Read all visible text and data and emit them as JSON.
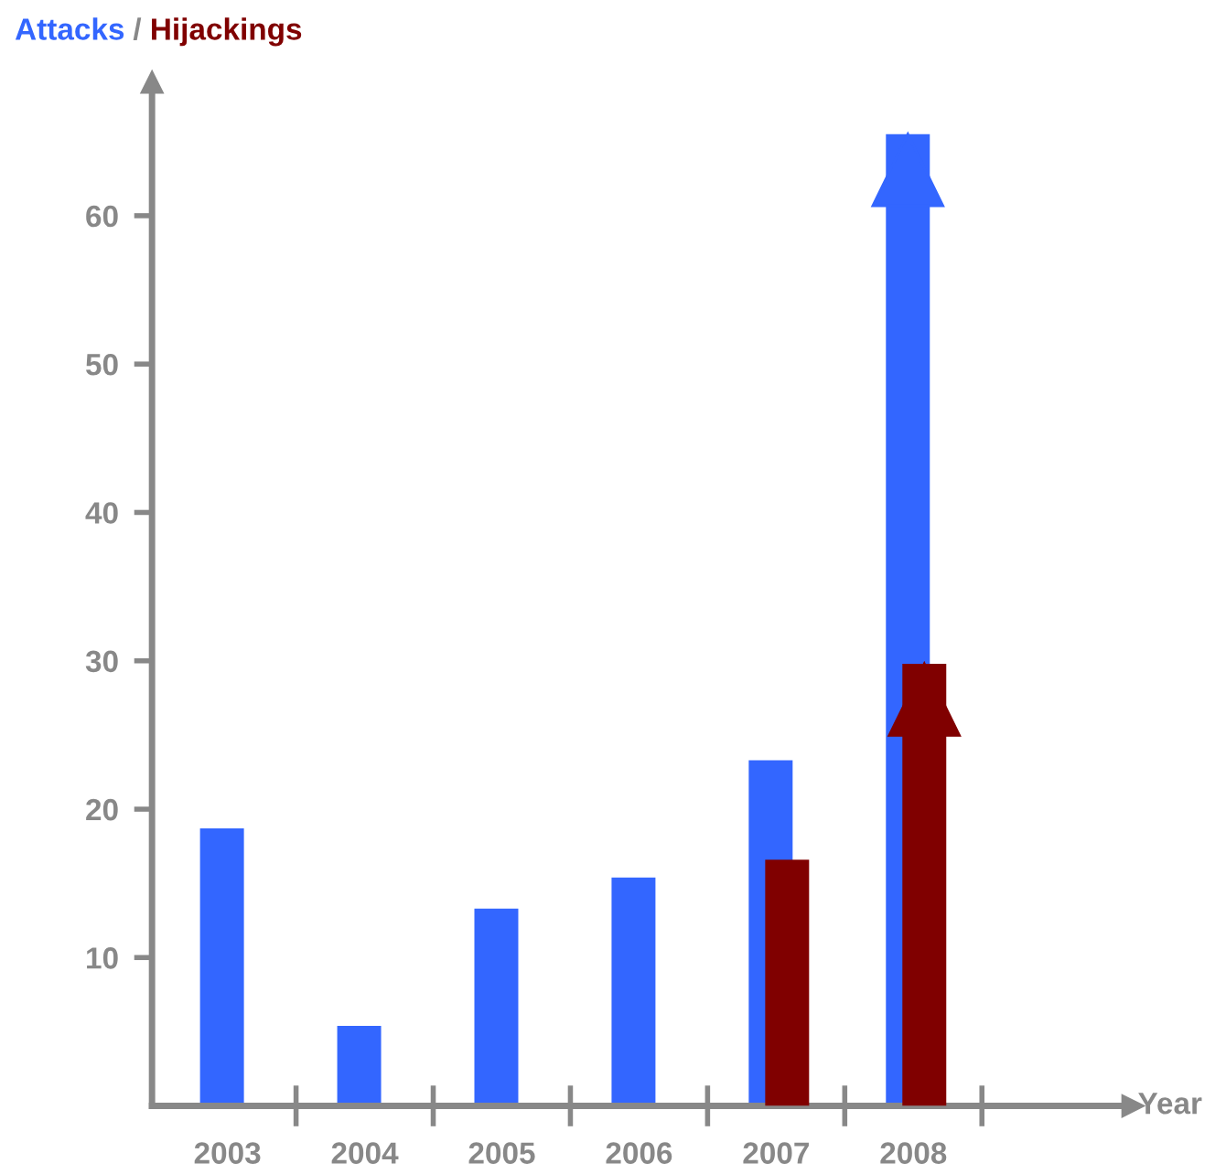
{
  "chart_data": {
    "type": "bar",
    "categories": [
      "2003",
      "2004",
      "2005",
      "2006",
      "2007",
      "2008"
    ],
    "series": [
      {
        "name": "Attacks",
        "color": "#3366ff",
        "values": [
          18.7,
          5.4,
          13.3,
          15.4,
          23.3,
          65.5
        ]
      },
      {
        "name": "Hijackings",
        "color": "#800000",
        "values": [
          null,
          null,
          null,
          null,
          16.6,
          29.8
        ]
      }
    ],
    "annotations": [
      "/",
      "Year"
    ],
    "ylim": [
      0,
      69
    ],
    "yticks": [
      10,
      20,
      30,
      40,
      50,
      60
    ],
    "grid": false,
    "legend": "top left"
  }
}
